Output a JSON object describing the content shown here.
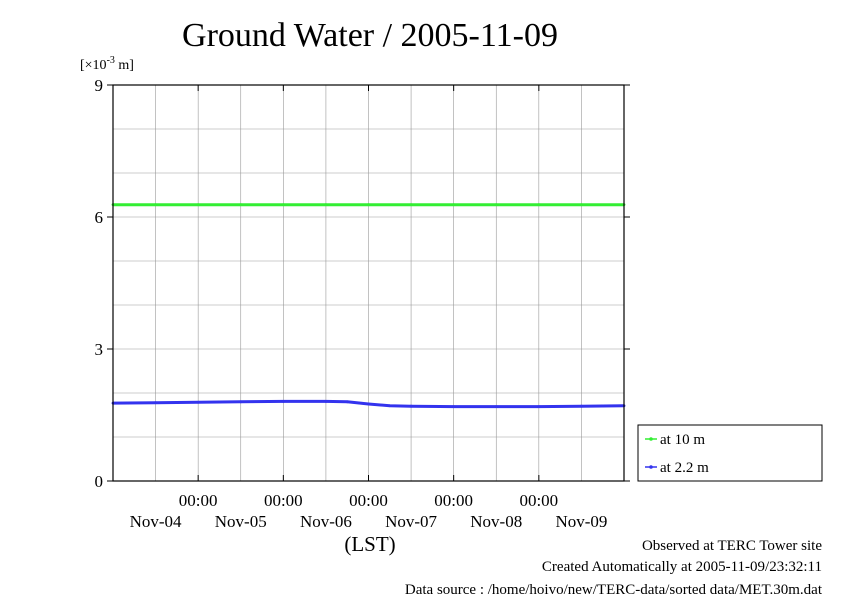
{
  "chart_data": {
    "type": "line",
    "title": "Ground Water / 2005-11-09",
    "yunit": {
      "pre": "[×10",
      "exp": "-3",
      "post": " m]"
    },
    "xlabel": "(LST)",
    "ylim": [
      0,
      9
    ],
    "yticks": [
      "0",
      "3",
      "6",
      "9"
    ],
    "xlim": [
      0,
      6
    ],
    "xticks": [
      {
        "x": 1,
        "time": "00:00",
        "date": "Nov-05"
      },
      {
        "x": 2,
        "time": "00:00",
        "date": "Nov-06"
      },
      {
        "x": 3,
        "time": "00:00",
        "date": "Nov-07"
      },
      {
        "x": 4,
        "time": "00:00",
        "date": "Nov-08"
      },
      {
        "x": 5,
        "time": "00:00",
        "date": "Nov-09"
      }
    ],
    "date_labels": [
      "Nov-04",
      "Nov-05",
      "Nov-06",
      "Nov-07",
      "Nov-08",
      "Nov-09"
    ],
    "grid": true,
    "legend_position": "bottom-right, outside plot",
    "series": [
      {
        "name": "at 10 m",
        "color": "#33ee33",
        "x": [
          0,
          0.5,
          1,
          1.5,
          2,
          2.5,
          3,
          3.5,
          4,
          4.5,
          5,
          5.5,
          6
        ],
        "y": [
          6.28,
          6.28,
          6.28,
          6.28,
          6.28,
          6.28,
          6.28,
          6.28,
          6.28,
          6.28,
          6.28,
          6.28,
          6.28
        ]
      },
      {
        "name": "at 2.2 m",
        "color": "#3333ee",
        "x": [
          0,
          0.5,
          1,
          1.5,
          2,
          2.5,
          2.75,
          3,
          3.25,
          3.5,
          4,
          4.5,
          5,
          5.5,
          6
        ],
        "y": [
          1.77,
          1.78,
          1.79,
          1.8,
          1.81,
          1.81,
          1.8,
          1.75,
          1.71,
          1.7,
          1.69,
          1.69,
          1.69,
          1.7,
          1.71
        ]
      }
    ]
  },
  "footer": {
    "line1": "Observed at TERC Tower site",
    "line2": "Created Automatically at 2005-11-09/23:32:11",
    "line3": "Data source : /home/hoivo/new/TERC-data/sorted  data/MET.30m.dat"
  }
}
